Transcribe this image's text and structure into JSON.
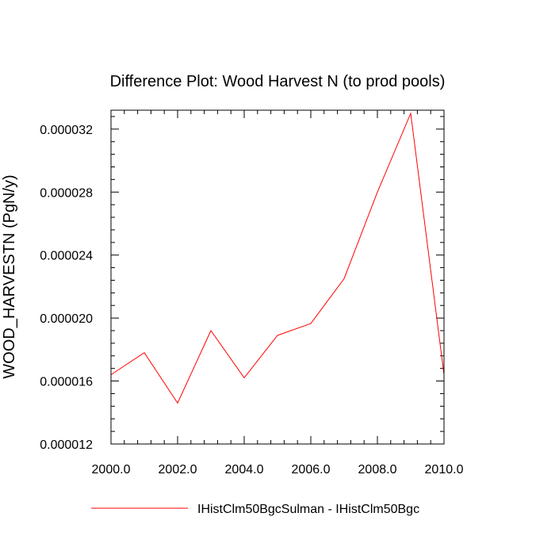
{
  "chart_data": {
    "type": "line",
    "title": "Difference Plot: Wood Harvest N (to prod pools)",
    "xlabel": "",
    "ylabel": "WOOD_HARVESTN  (PgN/y)",
    "xlim": [
      2000,
      2010
    ],
    "ylim": [
      1.2e-05,
      3.32e-05
    ],
    "x_ticks": [
      2000,
      2002,
      2004,
      2006,
      2008,
      2010
    ],
    "x_tick_labels": [
      "2000.0",
      "2002.0",
      "2004.0",
      "2006.0",
      "2008.0",
      "2010.0"
    ],
    "y_ticks": [
      1.2e-05,
      1.6e-05,
      2e-05,
      2.4e-05,
      2.8e-05,
      3.2e-05
    ],
    "y_tick_labels": [
      "0.000012",
      "0.000016",
      "0.000020",
      "0.000024",
      "0.000028",
      "0.000032"
    ],
    "x_minor_step": 0.4,
    "y_minor_step": 8e-07,
    "grid": false,
    "legend_position": "bottom-center",
    "series": [
      {
        "name": "IHistClm50BgcSulman - IHistClm50Bgc",
        "color": "#ff0000",
        "x": [
          2000,
          2001,
          2002,
          2003,
          2004,
          2005,
          2006,
          2007,
          2008,
          2009,
          2010
        ],
        "y": [
          1.64e-05,
          1.78e-05,
          1.46e-05,
          1.92e-05,
          1.62e-05,
          1.89e-05,
          1.965e-05,
          2.25e-05,
          2.8e-05,
          3.3e-05,
          1.64e-05
        ]
      }
    ]
  }
}
